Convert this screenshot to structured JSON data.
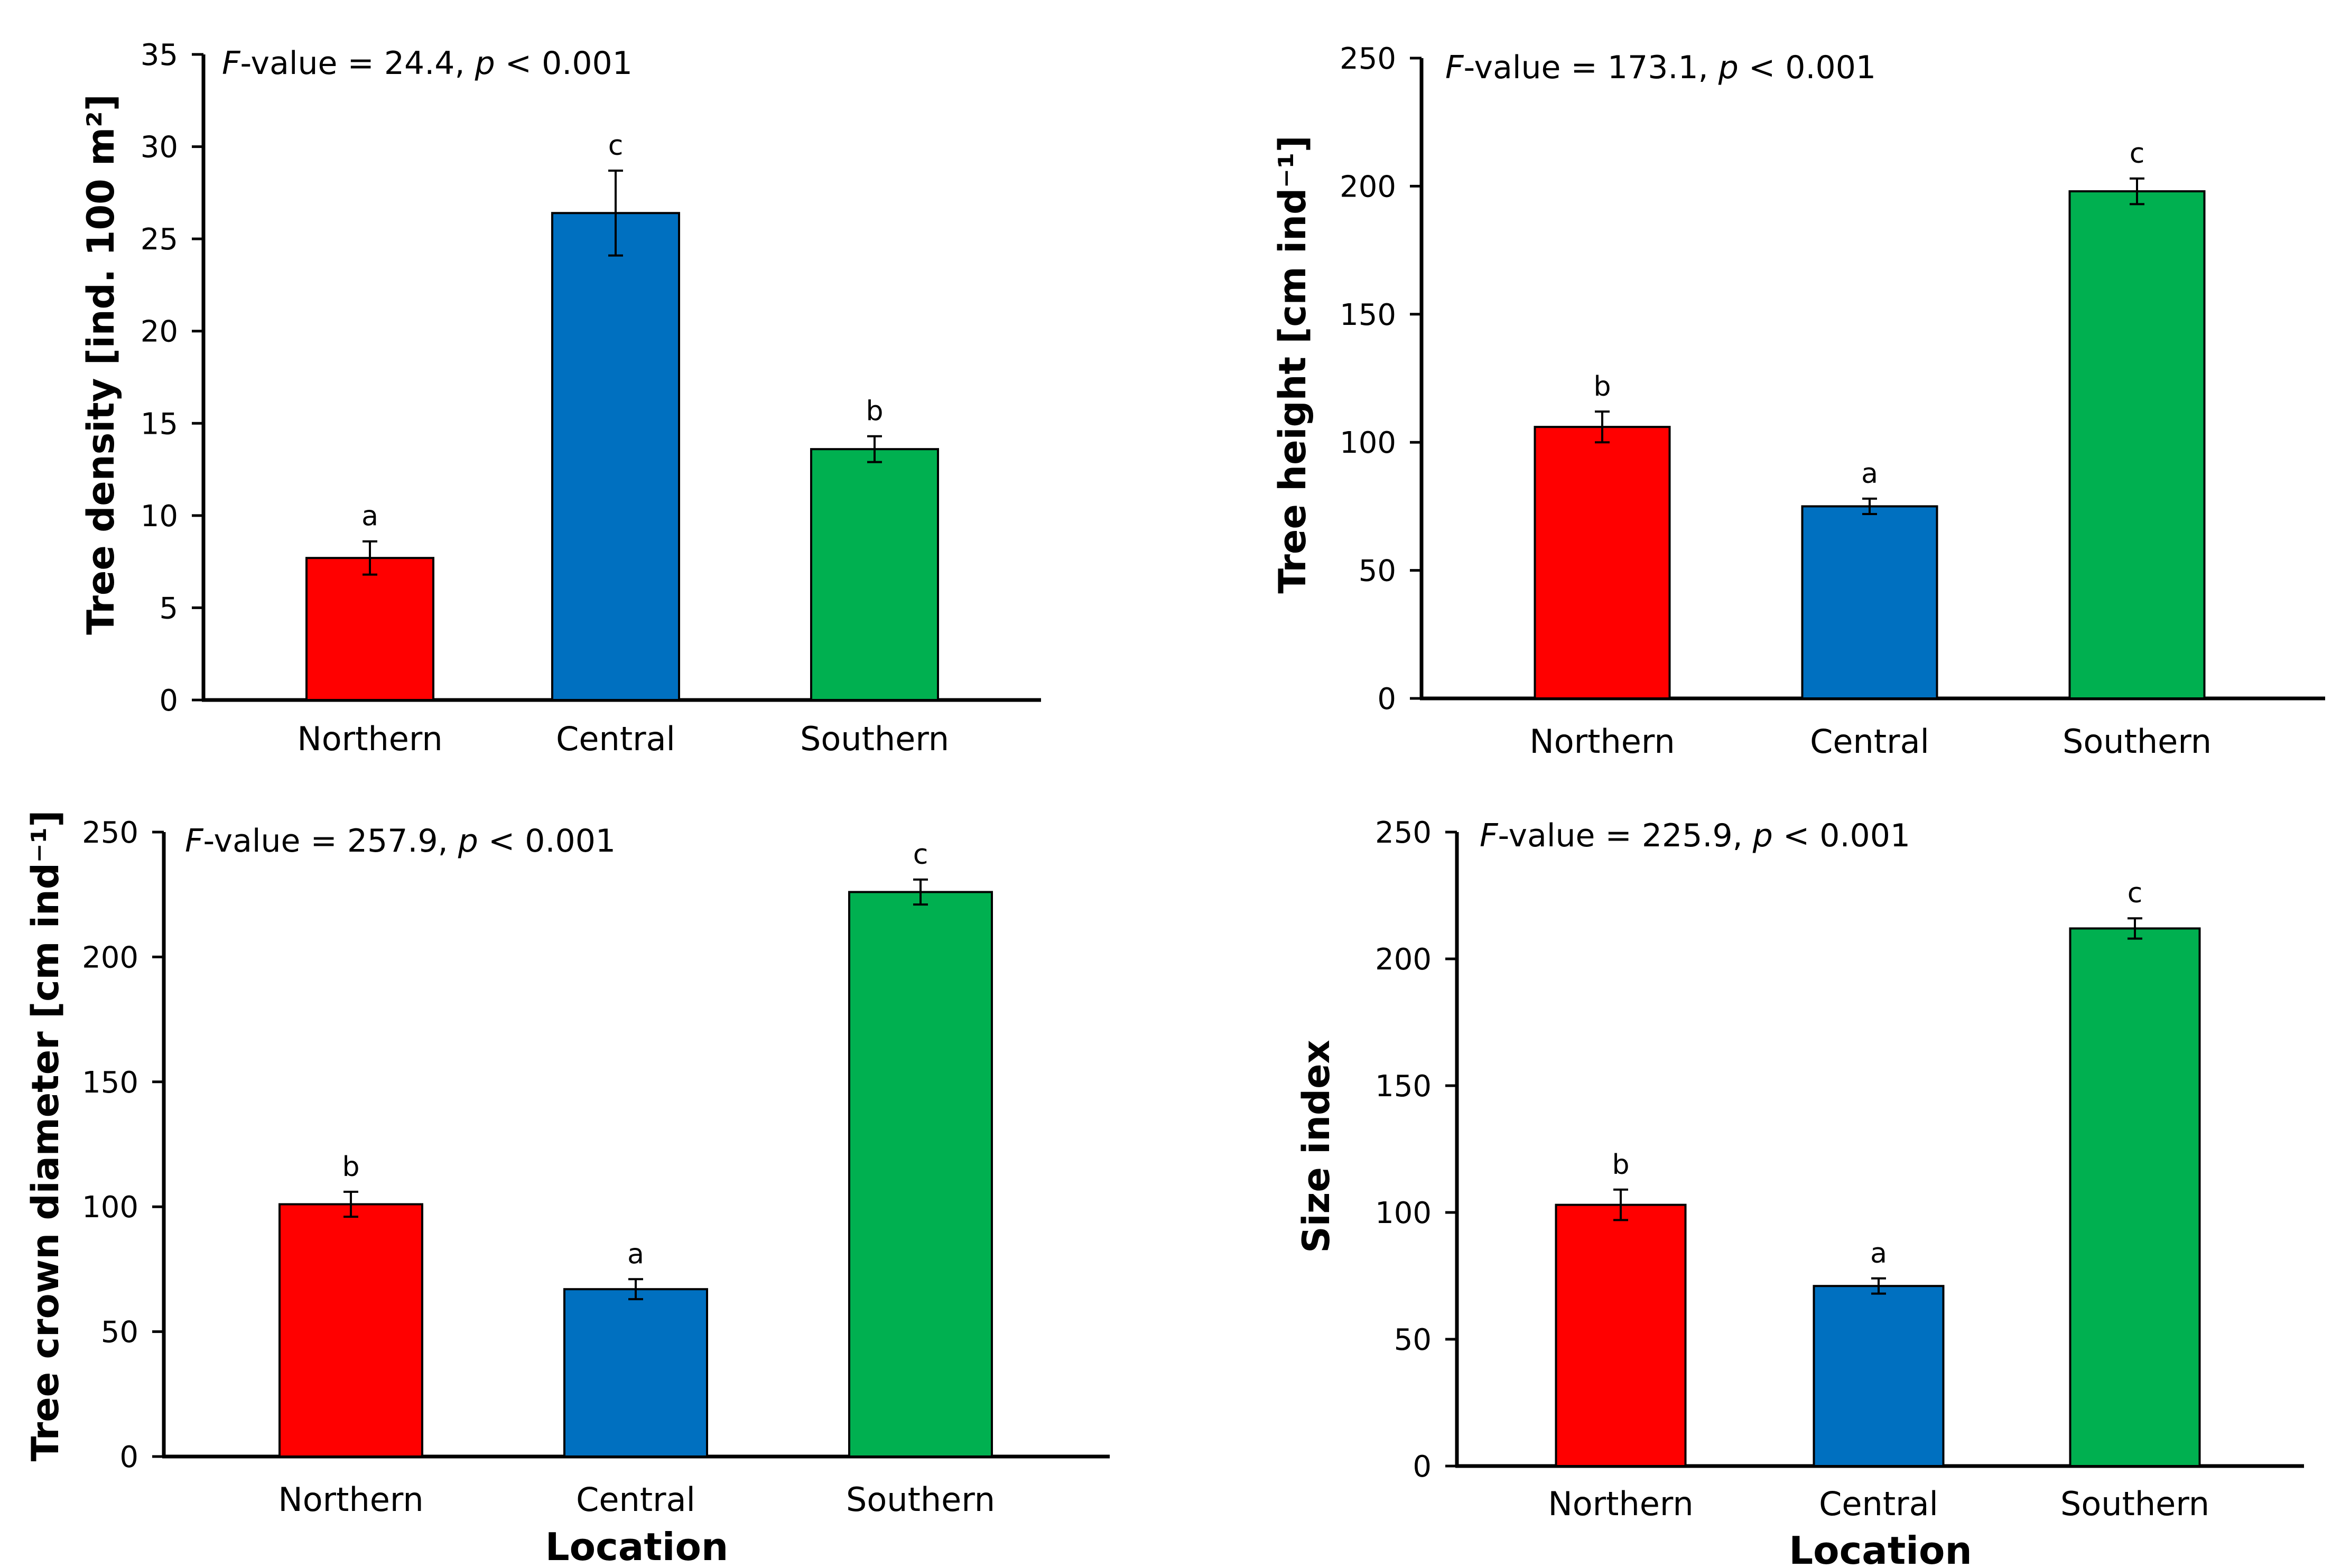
{
  "chart_data": [
    {
      "type": "bar",
      "categories": [
        "Northern",
        "Central",
        "Southern"
      ],
      "values": [
        7.7,
        26.4,
        13.6
      ],
      "errors": [
        0.9,
        2.3,
        0.7
      ],
      "letters": [
        "a",
        "c",
        "b"
      ],
      "colors": [
        "#FF0000",
        "#0070C0",
        "#00B050"
      ],
      "annotation_prefix": "F",
      "annotation_value": "-value = 24.4, ",
      "annotation_p": "p",
      "annotation_tail": " < 0.001",
      "ylabel": "Tree density [ind. 100 m²]",
      "xlabel": "",
      "ylim": [
        0,
        35
      ],
      "yticks": [
        0,
        5,
        10,
        15,
        20,
        25,
        30,
        35
      ]
    },
    {
      "type": "bar",
      "categories": [
        "Northern",
        "Central",
        "Southern"
      ],
      "values": [
        106,
        75,
        198
      ],
      "errors": [
        6,
        3,
        5
      ],
      "letters": [
        "b",
        "a",
        "c"
      ],
      "colors": [
        "#FF0000",
        "#0070C0",
        "#00B050"
      ],
      "annotation_prefix": "F",
      "annotation_value": "-value = 173.1, ",
      "annotation_p": "p",
      "annotation_tail": " < 0.001",
      "ylabel": "Tree height [cm ind⁻¹]",
      "xlabel": "",
      "ylim": [
        0,
        250
      ],
      "yticks": [
        0,
        50,
        100,
        150,
        200,
        250
      ]
    },
    {
      "type": "bar",
      "categories": [
        "Northern",
        "Central",
        "Southern"
      ],
      "values": [
        101,
        67,
        226
      ],
      "errors": [
        5,
        4,
        5
      ],
      "letters": [
        "b",
        "a",
        "c"
      ],
      "colors": [
        "#FF0000",
        "#0070C0",
        "#00B050"
      ],
      "annotation_prefix": "F",
      "annotation_value": "-value = 257.9, ",
      "annotation_p": "p",
      "annotation_tail": " < 0.001",
      "ylabel": "Tree crown diameter [cm ind⁻¹]",
      "xlabel": "Location",
      "ylim": [
        0,
        250
      ],
      "yticks": [
        0,
        50,
        100,
        150,
        200,
        250
      ]
    },
    {
      "type": "bar",
      "categories": [
        "Northern",
        "Central",
        "Southern"
      ],
      "values": [
        103,
        71,
        212
      ],
      "errors": [
        6,
        3,
        4
      ],
      "letters": [
        "b",
        "a",
        "c"
      ],
      "colors": [
        "#FF0000",
        "#0070C0",
        "#00B050"
      ],
      "annotation_prefix": "F",
      "annotation_value": "-value = 225.9, ",
      "annotation_p": "p",
      "annotation_tail": " < 0.001",
      "ylabel": "Size index",
      "xlabel": "Location",
      "ylim": [
        0,
        250
      ],
      "yticks": [
        0,
        50,
        100,
        150,
        200,
        250
      ]
    }
  ]
}
